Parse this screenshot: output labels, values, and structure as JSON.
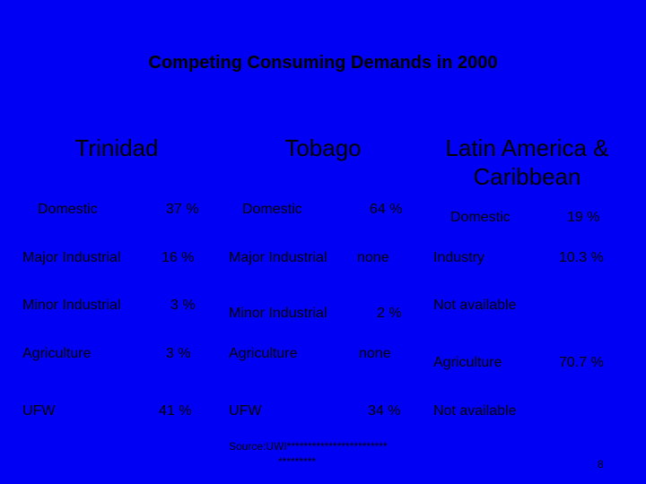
{
  "title": "Competing Consuming Demands in 2000",
  "regions": [
    {
      "header": "Trinidad",
      "rows": [
        {
          "label": "Domestic",
          "value": "37 %"
        },
        {
          "label": "Major Industrial",
          "value": "16 %"
        },
        {
          "label": "Minor Industrial",
          "value": "3 %"
        },
        {
          "label": "Agriculture",
          "value": "3 %"
        },
        {
          "label": "UFW",
          "value": "41 %"
        }
      ]
    },
    {
      "header": "Tobago",
      "rows": [
        {
          "label": "Domestic",
          "value": "64 %"
        },
        {
          "label": "Major Industrial",
          "value": "none"
        },
        {
          "label": "Minor Industrial",
          "value": "2 %"
        },
        {
          "label": "Agriculture",
          "value": "none"
        },
        {
          "label": "UFW",
          "value": "34 %"
        }
      ]
    },
    {
      "header": [
        "Latin America &",
        "Caribbean"
      ],
      "rows": [
        {
          "label": "Domestic",
          "value": "19 %"
        },
        {
          "label": "Industry",
          "value": "10.3 %"
        },
        {
          "label": "Not available"
        },
        {
          "label": "Agriculture",
          "value": "70.7 %"
        },
        {
          "label": "Not available"
        }
      ]
    }
  ],
  "source": [
    "Source:UWI************************",
    "*********"
  ],
  "page_number": "8"
}
